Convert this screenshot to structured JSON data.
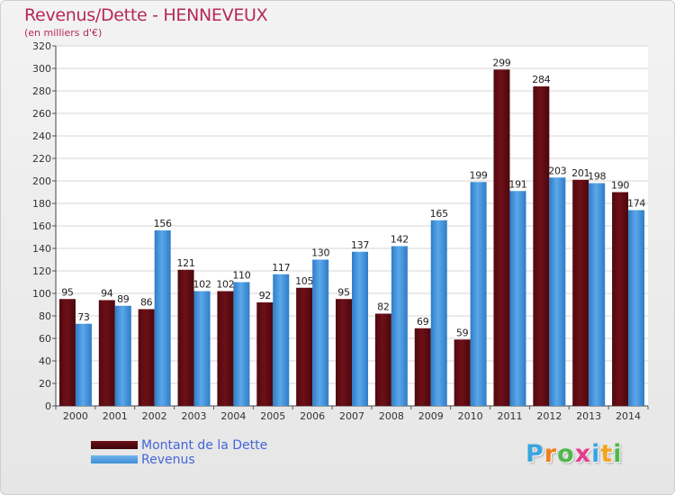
{
  "header": {
    "title": "Revenus/Dette - HENNEVEUX",
    "subtitle": "(en milliers d'€)"
  },
  "colors": {
    "debt": "#6e0f17",
    "revenue": "#3f8fd8",
    "title": "#b5285a",
    "legend_text": "#4466d8"
  },
  "logo": {
    "text": "Proxiti",
    "letters": [
      {
        "ch": "P",
        "color": "#3aa5e0"
      },
      {
        "ch": "r",
        "color": "#f07f1e"
      },
      {
        "ch": "o",
        "color": "#4fb84a"
      },
      {
        "ch": "x",
        "color": "#e63c8c"
      },
      {
        "ch": "i",
        "color": "#3aa5e0"
      },
      {
        "ch": "t",
        "color": "#f0a51e"
      },
      {
        "ch": "i",
        "color": "#4fb84a"
      }
    ]
  },
  "chart_data": {
    "type": "bar",
    "title": "Revenus/Dette - HENNEVEUX",
    "subtitle": "(en milliers d'€)",
    "xlabel": "",
    "ylabel": "",
    "ylim": [
      0,
      320
    ],
    "yticks": [
      0,
      20,
      40,
      60,
      80,
      100,
      120,
      140,
      160,
      180,
      200,
      220,
      240,
      260,
      280,
      300,
      320
    ],
    "grid": true,
    "legend_position": "bottom-left",
    "categories": [
      "2000",
      "2001",
      "2002",
      "2003",
      "2004",
      "2005",
      "2006",
      "2007",
      "2008",
      "2009",
      "2010",
      "2011",
      "2012",
      "2013",
      "2014"
    ],
    "series": [
      {
        "name": "Montant de la Dette",
        "values": [
          95,
          94,
          86,
          121,
          102,
          92,
          105,
          95,
          82,
          69,
          59,
          299,
          284,
          201,
          190
        ]
      },
      {
        "name": "Revenus",
        "values": [
          73,
          89,
          156,
          102,
          110,
          117,
          130,
          137,
          142,
          165,
          199,
          191,
          203,
          198,
          174
        ]
      }
    ]
  }
}
